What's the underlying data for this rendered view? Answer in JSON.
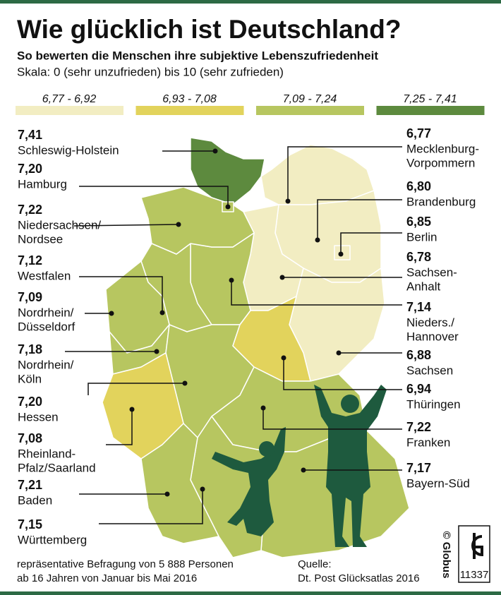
{
  "header": {
    "title": "Wie glücklich ist Deutschland?",
    "subtitle": "So bewerten die Menschen ihre subjektive Lebenszufriedenheit",
    "scale": "Skala: 0 (sehr unzufrieden) bis 10 (sehr zufrieden)"
  },
  "legend": [
    {
      "label": "6,77 - 6,92",
      "color": "#f2edc2"
    },
    {
      "label": "6,93 - 7,08",
      "color": "#e2d35c"
    },
    {
      "label": "7,09 - 7,24",
      "color": "#b7c660"
    },
    {
      "label": "7,25 - 7,41",
      "color": "#5d8a3e"
    }
  ],
  "regions": [
    {
      "score": "7,41",
      "name": [
        "Schleswig-Holstein"
      ],
      "color": "#5d8a3e"
    },
    {
      "score": "7,20",
      "name": [
        "Hamburg"
      ],
      "color": "#b7c660"
    },
    {
      "score": "7,22",
      "name": [
        "Niedersachsen/",
        "Nordsee"
      ],
      "color": "#b7c660"
    },
    {
      "score": "7,12",
      "name": [
        "Westfalen"
      ],
      "color": "#b7c660"
    },
    {
      "score": "7,09",
      "name": [
        "Nordrhein/",
        "Düsseldorf"
      ],
      "color": "#b7c660"
    },
    {
      "score": "7,18",
      "name": [
        "Nordrhein/",
        "Köln"
      ],
      "color": "#b7c660"
    },
    {
      "score": "7,20",
      "name": [
        "Hessen"
      ],
      "color": "#b7c660"
    },
    {
      "score": "7,08",
      "name": [
        "Rheinland-",
        "Pfalz/Saarland"
      ],
      "color": "#e2d35c"
    },
    {
      "score": "7,21",
      "name": [
        "Baden"
      ],
      "color": "#b7c660"
    },
    {
      "score": "7,15",
      "name": [
        "Württemberg"
      ],
      "color": "#b7c660"
    },
    {
      "score": "6,77",
      "name": [
        "Mecklenburg-",
        "Vorpommern"
      ],
      "color": "#f2edc2"
    },
    {
      "score": "6,80",
      "name": [
        "Brandenburg"
      ],
      "color": "#f2edc2"
    },
    {
      "score": "6,85",
      "name": [
        "Berlin"
      ],
      "color": "#f2edc2"
    },
    {
      "score": "6,78",
      "name": [
        "Sachsen-",
        "Anhalt"
      ],
      "color": "#f2edc2"
    },
    {
      "score": "7,14",
      "name": [
        "Nieders./",
        "Hannover"
      ],
      "color": "#b7c660"
    },
    {
      "score": "6,88",
      "name": [
        "Sachsen"
      ],
      "color": "#f2edc2"
    },
    {
      "score": "6,94",
      "name": [
        "Thüringen"
      ],
      "color": "#e2d35c"
    },
    {
      "score": "7,22",
      "name": [
        "Franken"
      ],
      "color": "#b7c660"
    },
    {
      "score": "7,17",
      "name": [
        "Bayern-Süd"
      ],
      "color": "#b7c660"
    }
  ],
  "footer": {
    "note": [
      "repräsentative Befragung von 5 888 Personen",
      "ab 16 Jahren von Januar bis Mai 2016"
    ],
    "source": [
      "Quelle:",
      "Dt. Post Glücksatlas 2016"
    ],
    "credit": "© Globus",
    "number": "11337"
  }
}
